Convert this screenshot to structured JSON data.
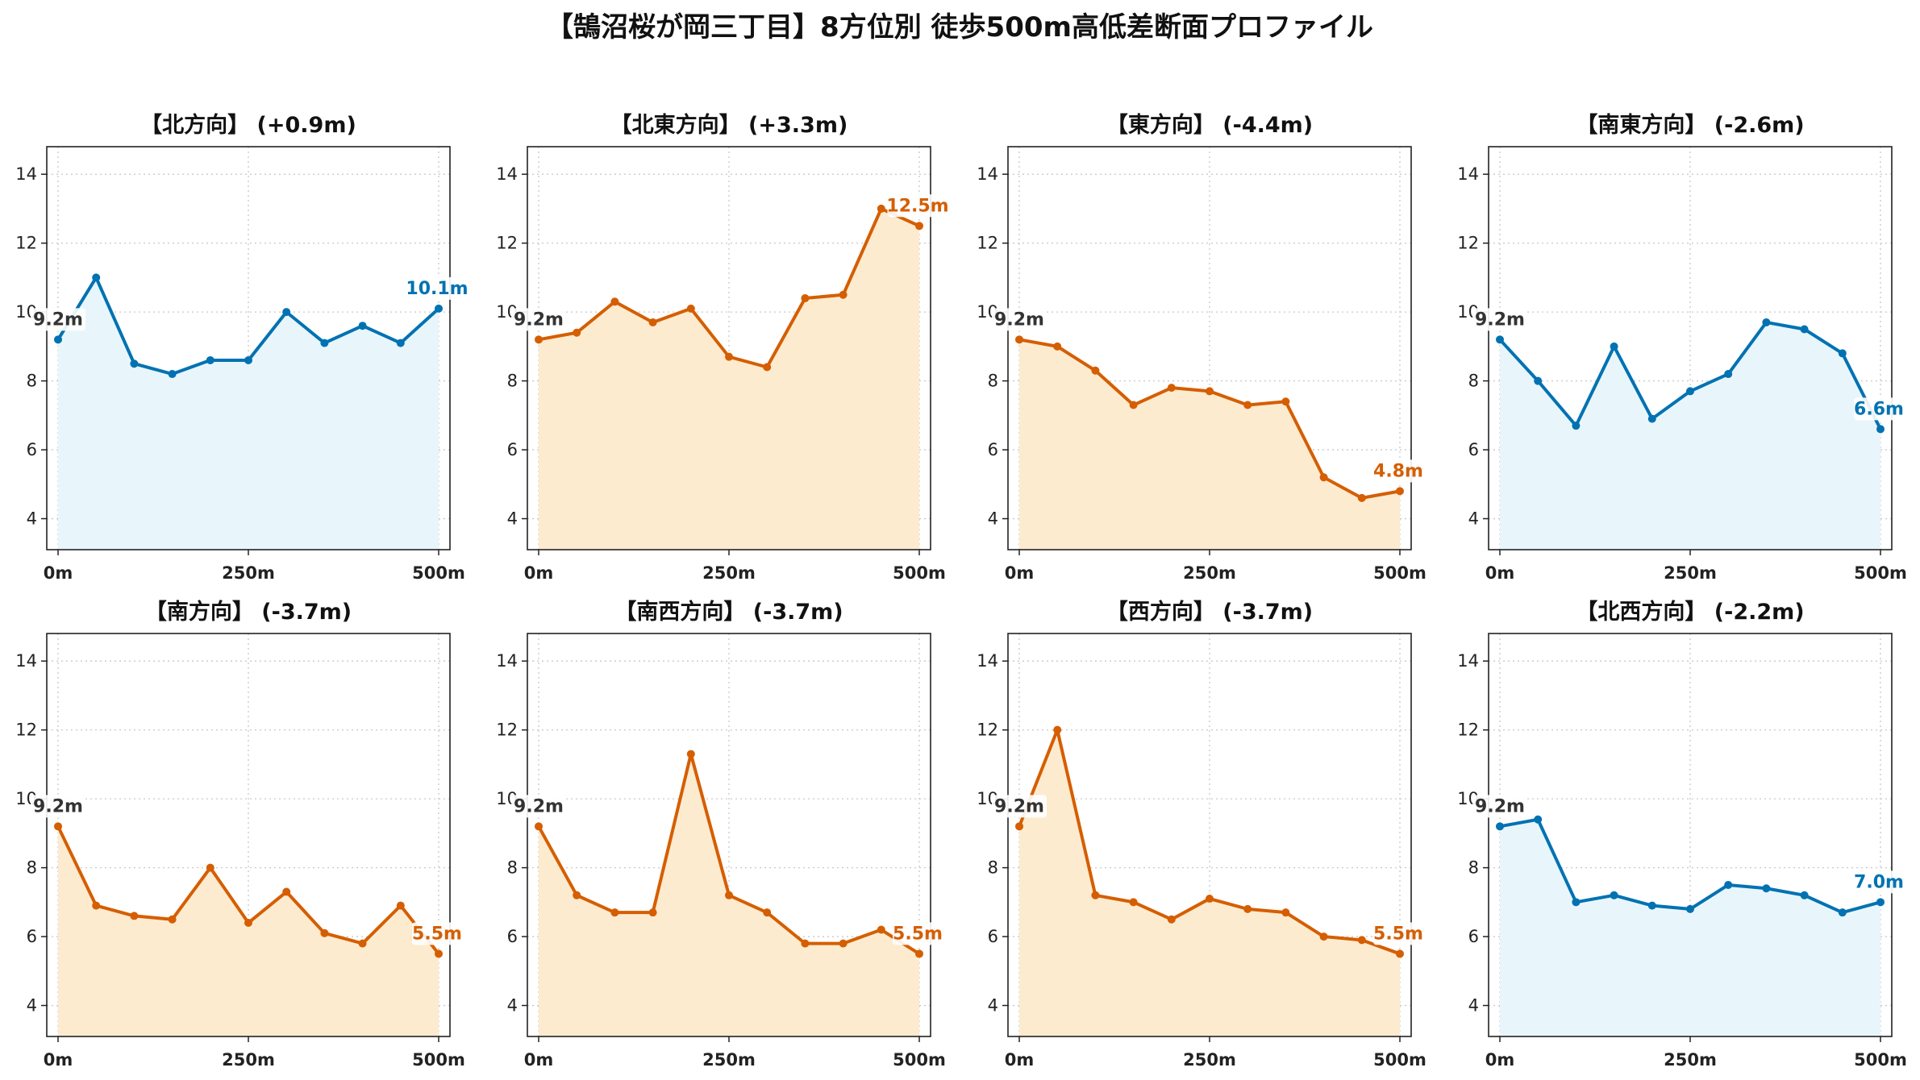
{
  "title": "【鵠沼桜が岡三丁目】8方位別 徒歩500m高低差断面プロファイル",
  "colors": {
    "up": "#0072B2",
    "up_fill": "#E8F6FC",
    "down": "#D55E00",
    "down_fill": "#FDEBD0",
    "start_label": "#333333"
  },
  "chart_data": [
    {
      "type": "area",
      "title": "【北方向】 (+0.9m)",
      "trend": "up",
      "x": [
        0,
        50,
        100,
        150,
        200,
        250,
        300,
        350,
        400,
        450,
        500
      ],
      "y": [
        9.2,
        11.0,
        8.5,
        8.2,
        8.6,
        8.6,
        10.0,
        9.1,
        9.6,
        9.1,
        10.1
      ],
      "start_label": "9.2m",
      "end_label": "10.1m",
      "xticks": [
        "0m",
        "250m",
        "500m"
      ],
      "yticks": [
        4,
        6,
        8,
        10,
        12,
        14
      ],
      "ylim": [
        3.1,
        14.8
      ],
      "grid": true
    },
    {
      "type": "area",
      "title": "【北東方向】 (+3.3m)",
      "trend": "down",
      "x": [
        0,
        50,
        100,
        150,
        200,
        250,
        300,
        350,
        400,
        450,
        500
      ],
      "y": [
        9.2,
        9.4,
        10.3,
        9.7,
        10.1,
        8.7,
        8.4,
        10.4,
        10.5,
        13.0,
        12.5
      ],
      "start_label": "9.2m",
      "end_label": "12.5m",
      "xticks": [
        "0m",
        "250m",
        "500m"
      ],
      "yticks": [
        4,
        6,
        8,
        10,
        12,
        14
      ],
      "ylim": [
        3.1,
        14.8
      ],
      "grid": true
    },
    {
      "type": "area",
      "title": "【東方向】 (-4.4m)",
      "trend": "down",
      "x": [
        0,
        50,
        100,
        150,
        200,
        250,
        300,
        350,
        400,
        450,
        500
      ],
      "y": [
        9.2,
        9.0,
        8.3,
        7.3,
        7.8,
        7.7,
        7.3,
        7.4,
        5.2,
        4.6,
        4.8
      ],
      "start_label": "9.2m",
      "end_label": "4.8m",
      "xticks": [
        "0m",
        "250m",
        "500m"
      ],
      "yticks": [
        4,
        6,
        8,
        10,
        12,
        14
      ],
      "ylim": [
        3.1,
        14.8
      ],
      "grid": true
    },
    {
      "type": "area",
      "title": "【南東方向】 (-2.6m)",
      "trend": "up",
      "x": [
        0,
        50,
        100,
        150,
        200,
        250,
        300,
        350,
        400,
        450,
        500
      ],
      "y": [
        9.2,
        8.0,
        6.7,
        9.0,
        6.9,
        7.7,
        8.2,
        9.7,
        9.5,
        8.8,
        6.6
      ],
      "start_label": "9.2m",
      "end_label": "6.6m",
      "xticks": [
        "0m",
        "250m",
        "500m"
      ],
      "yticks": [
        4,
        6,
        8,
        10,
        12,
        14
      ],
      "ylim": [
        3.1,
        14.8
      ],
      "grid": true
    },
    {
      "type": "area",
      "title": "【南方向】 (-3.7m)",
      "trend": "down",
      "x": [
        0,
        50,
        100,
        150,
        200,
        250,
        300,
        350,
        400,
        450,
        500
      ],
      "y": [
        9.2,
        6.9,
        6.6,
        6.5,
        8.0,
        6.4,
        7.3,
        6.1,
        5.8,
        6.9,
        5.5
      ],
      "start_label": "9.2m",
      "end_label": "5.5m",
      "xticks": [
        "0m",
        "250m",
        "500m"
      ],
      "yticks": [
        4,
        6,
        8,
        10,
        12,
        14
      ],
      "ylim": [
        3.1,
        14.8
      ],
      "grid": true
    },
    {
      "type": "area",
      "title": "【南西方向】 (-3.7m)",
      "trend": "down",
      "x": [
        0,
        50,
        100,
        150,
        200,
        250,
        300,
        350,
        400,
        450,
        500
      ],
      "y": [
        9.2,
        7.2,
        6.7,
        6.7,
        11.3,
        7.2,
        6.7,
        5.8,
        5.8,
        6.2,
        5.5
      ],
      "start_label": "9.2m",
      "end_label": "5.5m",
      "xticks": [
        "0m",
        "250m",
        "500m"
      ],
      "yticks": [
        4,
        6,
        8,
        10,
        12,
        14
      ],
      "ylim": [
        3.1,
        14.8
      ],
      "grid": true
    },
    {
      "type": "area",
      "title": "【西方向】 (-3.7m)",
      "trend": "down",
      "x": [
        0,
        50,
        100,
        150,
        200,
        250,
        300,
        350,
        400,
        450,
        500
      ],
      "y": [
        9.2,
        12.0,
        7.2,
        7.0,
        6.5,
        7.1,
        6.8,
        6.7,
        6.0,
        5.9,
        5.5
      ],
      "start_label": "9.2m",
      "end_label": "5.5m",
      "xticks": [
        "0m",
        "250m",
        "500m"
      ],
      "yticks": [
        4,
        6,
        8,
        10,
        12,
        14
      ],
      "ylim": [
        3.1,
        14.8
      ],
      "grid": true
    },
    {
      "type": "area",
      "title": "【北西方向】 (-2.2m)",
      "trend": "up",
      "x": [
        0,
        50,
        100,
        150,
        200,
        250,
        300,
        350,
        400,
        450,
        500
      ],
      "y": [
        9.2,
        9.4,
        7.0,
        7.2,
        6.9,
        6.8,
        7.5,
        7.4,
        7.2,
        6.7,
        7.0
      ],
      "start_label": "9.2m",
      "end_label": "7.0m",
      "xticks": [
        "0m",
        "250m",
        "500m"
      ],
      "yticks": [
        4,
        6,
        8,
        10,
        12,
        14
      ],
      "ylim": [
        3.1,
        14.8
      ],
      "grid": true
    }
  ]
}
